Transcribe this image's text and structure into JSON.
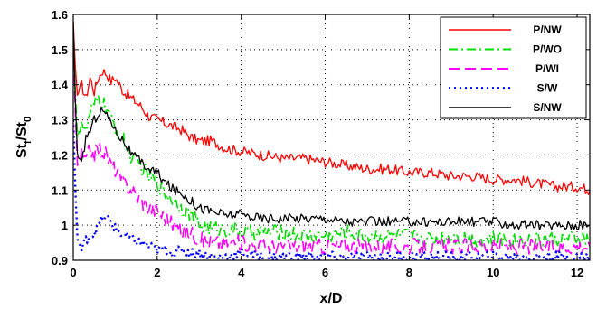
{
  "chart_data": {
    "type": "line",
    "xlabel": "x/D",
    "ylabel_main": "St",
    "ylabel_sub1": "f",
    "ylabel_mid": "/St",
    "ylabel_sub2": "0",
    "xlim": [
      0,
      12.3
    ],
    "ylim": [
      0.9,
      1.6
    ],
    "xticks": [
      0,
      2,
      4,
      6,
      8,
      10,
      12
    ],
    "yticks": [
      0.9,
      1.0,
      1.1,
      1.2,
      1.3,
      1.4,
      1.5,
      1.6
    ],
    "xtick_labels": [
      "0",
      "2",
      "4",
      "6",
      "8",
      "10",
      "12"
    ],
    "ytick_labels": [
      "0.9",
      "1",
      "1.1",
      "1.2",
      "1.3",
      "1.4",
      "1.5",
      "1.6"
    ],
    "grid": "dotted",
    "legend_position": "top-right",
    "series": [
      {
        "name": "P/NW",
        "color": "#ff0000",
        "dash": "solid",
        "points": [
          [
            0,
            1.58
          ],
          [
            0.05,
            1.45
          ],
          [
            0.1,
            1.37
          ],
          [
            0.2,
            1.4
          ],
          [
            0.3,
            1.36
          ],
          [
            0.4,
            1.42
          ],
          [
            0.5,
            1.38
          ],
          [
            0.6,
            1.42
          ],
          [
            0.7,
            1.44
          ],
          [
            0.8,
            1.43
          ],
          [
            0.9,
            1.41
          ],
          [
            1.0,
            1.42
          ],
          [
            1.2,
            1.38
          ],
          [
            1.4,
            1.36
          ],
          [
            1.6,
            1.34
          ],
          [
            1.8,
            1.31
          ],
          [
            2.0,
            1.3
          ],
          [
            2.2,
            1.29
          ],
          [
            2.4,
            1.28
          ],
          [
            2.6,
            1.27
          ],
          [
            2.8,
            1.25
          ],
          [
            3.0,
            1.24
          ],
          [
            3.3,
            1.24
          ],
          [
            3.6,
            1.22
          ],
          [
            4.0,
            1.21
          ],
          [
            4.5,
            1.2
          ],
          [
            5.0,
            1.19
          ],
          [
            5.5,
            1.19
          ],
          [
            6.0,
            1.18
          ],
          [
            6.5,
            1.17
          ],
          [
            7.0,
            1.16
          ],
          [
            7.5,
            1.16
          ],
          [
            8.0,
            1.15
          ],
          [
            8.5,
            1.15
          ],
          [
            9.0,
            1.14
          ],
          [
            9.5,
            1.14
          ],
          [
            10.0,
            1.13
          ],
          [
            10.5,
            1.13
          ],
          [
            11.0,
            1.12
          ],
          [
            11.5,
            1.11
          ],
          [
            12.0,
            1.11
          ],
          [
            12.3,
            1.1
          ]
        ]
      },
      {
        "name": "P/WO",
        "color": "#00dd00",
        "dash": "dashdot",
        "points": [
          [
            0,
            1.55
          ],
          [
            0.05,
            1.38
          ],
          [
            0.1,
            1.25
          ],
          [
            0.2,
            1.3
          ],
          [
            0.3,
            1.26
          ],
          [
            0.4,
            1.32
          ],
          [
            0.5,
            1.34
          ],
          [
            0.6,
            1.36
          ],
          [
            0.7,
            1.35
          ],
          [
            0.8,
            1.33
          ],
          [
            0.9,
            1.3
          ],
          [
            1.0,
            1.28
          ],
          [
            1.2,
            1.24
          ],
          [
            1.4,
            1.19
          ],
          [
            1.6,
            1.17
          ],
          [
            1.8,
            1.14
          ],
          [
            2.0,
            1.12
          ],
          [
            2.2,
            1.09
          ],
          [
            2.4,
            1.07
          ],
          [
            2.6,
            1.05
          ],
          [
            2.8,
            1.03
          ],
          [
            3.0,
            1.0
          ],
          [
            3.3,
            0.99
          ],
          [
            3.6,
            0.99
          ],
          [
            4.0,
            0.98
          ],
          [
            4.5,
            0.98
          ],
          [
            5.0,
            0.98
          ],
          [
            5.5,
            0.97
          ],
          [
            6.0,
            0.97
          ],
          [
            6.5,
            0.98
          ],
          [
            7.0,
            0.97
          ],
          [
            7.5,
            0.97
          ],
          [
            8.0,
            0.97
          ],
          [
            8.5,
            0.96
          ],
          [
            9.0,
            0.97
          ],
          [
            9.5,
            0.96
          ],
          [
            10.0,
            0.96
          ],
          [
            10.5,
            0.96
          ],
          [
            11.0,
            0.96
          ],
          [
            11.5,
            0.96
          ],
          [
            12.0,
            0.96
          ],
          [
            12.3,
            0.96
          ]
        ]
      },
      {
        "name": "P/WI",
        "color": "#ff00ff",
        "dash": "dashed",
        "points": [
          [
            0,
            1.52
          ],
          [
            0.05,
            1.32
          ],
          [
            0.1,
            1.17
          ],
          [
            0.2,
            1.2
          ],
          [
            0.3,
            1.18
          ],
          [
            0.4,
            1.22
          ],
          [
            0.5,
            1.2
          ],
          [
            0.6,
            1.22
          ],
          [
            0.7,
            1.21
          ],
          [
            0.8,
            1.2
          ],
          [
            0.9,
            1.17
          ],
          [
            1.0,
            1.16
          ],
          [
            1.2,
            1.12
          ],
          [
            1.4,
            1.1
          ],
          [
            1.6,
            1.07
          ],
          [
            1.8,
            1.05
          ],
          [
            2.0,
            1.04
          ],
          [
            2.2,
            1.02
          ],
          [
            2.4,
            1.0
          ],
          [
            2.6,
            0.98
          ],
          [
            2.8,
            0.98
          ],
          [
            3.0,
            0.96
          ],
          [
            3.3,
            0.95
          ],
          [
            3.6,
            0.95
          ],
          [
            4.0,
            0.95
          ],
          [
            4.5,
            0.94
          ],
          [
            5.0,
            0.94
          ],
          [
            5.5,
            0.94
          ],
          [
            6.0,
            0.94
          ],
          [
            6.5,
            0.94
          ],
          [
            7.0,
            0.94
          ],
          [
            7.5,
            0.94
          ],
          [
            8.0,
            0.94
          ],
          [
            8.5,
            0.94
          ],
          [
            9.0,
            0.94
          ],
          [
            9.5,
            0.94
          ],
          [
            10.0,
            0.94
          ],
          [
            10.5,
            0.94
          ],
          [
            11.0,
            0.94
          ],
          [
            11.5,
            0.94
          ],
          [
            12.0,
            0.94
          ],
          [
            12.3,
            0.94
          ]
        ]
      },
      {
        "name": "S/W",
        "color": "#0000ff",
        "dash": "dotted",
        "points": [
          [
            0,
            1.3
          ],
          [
            0.05,
            1.1
          ],
          [
            0.1,
            0.96
          ],
          [
            0.2,
            0.93
          ],
          [
            0.3,
            0.96
          ],
          [
            0.4,
            0.97
          ],
          [
            0.5,
            0.98
          ],
          [
            0.6,
            1.0
          ],
          [
            0.7,
            1.02
          ],
          [
            0.8,
            1.02
          ],
          [
            0.9,
            1.01
          ],
          [
            1.0,
            0.99
          ],
          [
            1.2,
            0.97
          ],
          [
            1.4,
            0.96
          ],
          [
            1.6,
            0.95
          ],
          [
            1.8,
            0.94
          ],
          [
            2.0,
            0.93
          ],
          [
            2.2,
            0.93
          ],
          [
            2.4,
            0.92
          ],
          [
            2.6,
            0.93
          ],
          [
            2.8,
            0.92
          ],
          [
            3.0,
            0.92
          ],
          [
            3.3,
            0.91
          ],
          [
            3.6,
            0.91
          ],
          [
            4.0,
            0.92
          ],
          [
            4.5,
            0.91
          ],
          [
            5.0,
            0.91
          ],
          [
            5.5,
            0.91
          ],
          [
            6.0,
            0.91
          ],
          [
            6.5,
            0.91
          ],
          [
            7.0,
            0.91
          ],
          [
            7.5,
            0.91
          ],
          [
            8.0,
            0.91
          ],
          [
            8.5,
            0.91
          ],
          [
            9.0,
            0.91
          ],
          [
            9.5,
            0.91
          ],
          [
            10.0,
            0.91
          ],
          [
            10.5,
            0.91
          ],
          [
            11.0,
            0.91
          ],
          [
            11.5,
            0.91
          ],
          [
            12.0,
            0.91
          ],
          [
            12.3,
            0.91
          ]
        ]
      },
      {
        "name": "S/NW",
        "color": "#000000",
        "dash": "solid",
        "points": [
          [
            0,
            1.58
          ],
          [
            0.05,
            1.35
          ],
          [
            0.1,
            1.2
          ],
          [
            0.2,
            1.17
          ],
          [
            0.3,
            1.25
          ],
          [
            0.4,
            1.27
          ],
          [
            0.5,
            1.3
          ],
          [
            0.6,
            1.32
          ],
          [
            0.7,
            1.33
          ],
          [
            0.8,
            1.31
          ],
          [
            0.9,
            1.3
          ],
          [
            1.0,
            1.27
          ],
          [
            1.2,
            1.24
          ],
          [
            1.4,
            1.2
          ],
          [
            1.6,
            1.18
          ],
          [
            1.8,
            1.16
          ],
          [
            2.0,
            1.15
          ],
          [
            2.2,
            1.12
          ],
          [
            2.4,
            1.1
          ],
          [
            2.6,
            1.09
          ],
          [
            2.8,
            1.07
          ],
          [
            3.0,
            1.05
          ],
          [
            3.3,
            1.04
          ],
          [
            3.6,
            1.03
          ],
          [
            4.0,
            1.03
          ],
          [
            4.5,
            1.02
          ],
          [
            5.0,
            1.02
          ],
          [
            5.5,
            1.02
          ],
          [
            6.0,
            1.02
          ],
          [
            6.5,
            1.01
          ],
          [
            7.0,
            1.01
          ],
          [
            7.5,
            1.01
          ],
          [
            8.0,
            1.01
          ],
          [
            8.5,
            1.01
          ],
          [
            9.0,
            1.01
          ],
          [
            9.5,
            1.01
          ],
          [
            10.0,
            1.01
          ],
          [
            10.5,
            1.0
          ],
          [
            11.0,
            1.0
          ],
          [
            11.5,
            1.0
          ],
          [
            12.0,
            1.0
          ],
          [
            12.3,
            1.0
          ]
        ]
      }
    ]
  }
}
